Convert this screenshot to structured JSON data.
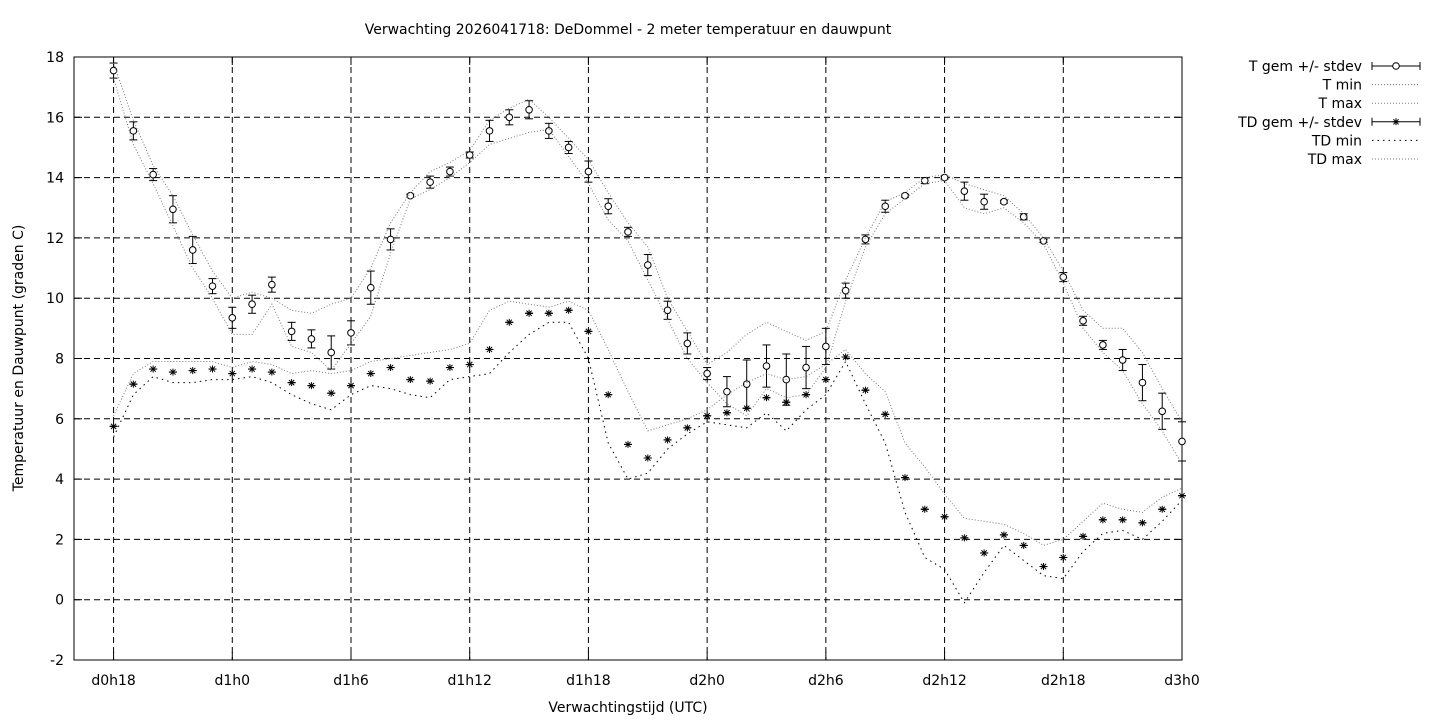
{
  "chart_data": {
    "type": "line",
    "title": "Verwachting 2026041718: DeDommel - 2 meter temperatuur en dauwpunt",
    "xlabel": "Verwachtingstijd (UTC)",
    "ylabel": "Temperatuur en Dauwpunt (graden C)",
    "x_unit": "forecast hour",
    "xlim": [
      -2,
      54
    ],
    "ylim": [
      -2,
      18
    ],
    "y_ticks": [
      -2,
      0,
      2,
      4,
      6,
      8,
      10,
      12,
      14,
      16,
      18
    ],
    "x_ticks": [
      {
        "x": 0,
        "label": "d0h18"
      },
      {
        "x": 6,
        "label": "d1h0"
      },
      {
        "x": 12,
        "label": "d1h6"
      },
      {
        "x": 18,
        "label": "d1h12"
      },
      {
        "x": 24,
        "label": "d1h18"
      },
      {
        "x": 30,
        "label": "d2h0"
      },
      {
        "x": 36,
        "label": "d2h6"
      },
      {
        "x": 42,
        "label": "d2h12"
      },
      {
        "x": 48,
        "label": "d2h18"
      },
      {
        "x": 54,
        "label": "d3h0"
      }
    ],
    "grid": true,
    "legend_position": "outside-right-top",
    "x": [
      0,
      1,
      2,
      3,
      4,
      5,
      6,
      7,
      8,
      9,
      10,
      11,
      12,
      13,
      14,
      15,
      16,
      17,
      18,
      19,
      20,
      21,
      22,
      23,
      24,
      25,
      26,
      27,
      28,
      29,
      30,
      31,
      32,
      33,
      34,
      35,
      36,
      37,
      38,
      39,
      40,
      41,
      42,
      43,
      44,
      45,
      46,
      47,
      48,
      49,
      50,
      51,
      52,
      53,
      54
    ],
    "series": [
      {
        "name": "T gem +/- stdev",
        "marker": "circle",
        "style": "errorbars",
        "values": [
          17.55,
          15.55,
          14.1,
          12.95,
          11.6,
          10.4,
          9.35,
          9.8,
          10.45,
          8.9,
          8.65,
          8.2,
          8.85,
          10.35,
          11.95,
          13.4,
          13.85,
          14.2,
          14.75,
          15.55,
          16.0,
          16.25,
          15.55,
          15.0,
          14.2,
          13.05,
          12.2,
          11.1,
          9.6,
          8.5,
          7.5,
          6.9,
          7.15,
          7.75,
          7.3,
          7.7,
          8.4,
          10.25,
          11.95,
          13.05,
          13.4,
          13.9,
          14.0,
          13.55,
          13.2,
          13.2,
          12.7,
          11.9,
          10.7,
          9.25,
          8.45,
          7.95,
          7.2,
          6.25,
          5.25
        ],
        "stdev": [
          0.25,
          0.3,
          0.2,
          0.45,
          0.45,
          0.25,
          0.35,
          0.3,
          0.25,
          0.3,
          0.3,
          0.55,
          0.4,
          0.55,
          0.35,
          0.05,
          0.2,
          0.15,
          0.1,
          0.35,
          0.25,
          0.3,
          0.25,
          0.2,
          0.35,
          0.25,
          0.15,
          0.35,
          0.3,
          0.35,
          0.2,
          0.5,
          0.8,
          0.7,
          0.85,
          0.7,
          0.6,
          0.25,
          0.15,
          0.2,
          0.05,
          0.1,
          0.05,
          0.3,
          0.25,
          0.05,
          0.1,
          0.05,
          0.15,
          0.15,
          0.15,
          0.35,
          0.6,
          0.6,
          0.65
        ]
      },
      {
        "name": "T min",
        "style": "dotted",
        "values": [
          17.3,
          15.1,
          13.8,
          12.4,
          11.0,
          10.0,
          8.8,
          8.8,
          9.8,
          8.4,
          8.2,
          7.6,
          8.5,
          9.4,
          11.5,
          13.3,
          13.6,
          14.0,
          14.5,
          15.1,
          15.3,
          15.5,
          15.6,
          14.7,
          13.8,
          12.6,
          11.9,
          10.6,
          9.3,
          8.0,
          7.2,
          6.5,
          6.1,
          7.0,
          6.7,
          6.8,
          7.7,
          9.9,
          11.7,
          12.8,
          13.3,
          13.8,
          13.9,
          13.0,
          12.8,
          13.0,
          12.5,
          11.8,
          10.5,
          9.0,
          8.2,
          7.6,
          6.5,
          5.6,
          4.5
        ]
      },
      {
        "name": "T max",
        "style": "dotted",
        "values": [
          17.8,
          15.9,
          14.4,
          13.4,
          12.1,
          10.9,
          10.0,
          10.2,
          10.0,
          9.6,
          9.5,
          9.8,
          10.0,
          11.0,
          12.5,
          13.5,
          14.2,
          14.5,
          14.9,
          15.9,
          16.3,
          16.6,
          16.0,
          15.3,
          14.6,
          13.5,
          12.5,
          11.7,
          10.0,
          8.9,
          7.8,
          8.2,
          8.8,
          9.2,
          8.9,
          8.6,
          8.9,
          10.6,
          12.0,
          13.2,
          13.5,
          14.0,
          14.1,
          13.8,
          13.6,
          13.4,
          12.8,
          12.0,
          10.9,
          9.6,
          9.0,
          9.0,
          8.2,
          7.0,
          5.9
        ]
      },
      {
        "name": "TD gem +/- stdev",
        "marker": "asterisk",
        "style": "errorbars",
        "values": [
          5.75,
          7.15,
          7.65,
          7.55,
          7.6,
          7.65,
          7.5,
          7.65,
          7.55,
          7.2,
          7.1,
          6.85,
          7.1,
          7.5,
          7.7,
          7.3,
          7.25,
          7.7,
          7.8,
          8.3,
          9.2,
          9.5,
          9.5,
          9.6,
          8.9,
          6.8,
          5.15,
          4.7,
          5.3,
          5.7,
          6.1,
          6.2,
          6.35,
          6.7,
          6.55,
          6.8,
          7.3,
          8.05,
          6.95,
          6.15,
          4.05,
          3.0,
          2.75,
          2.05,
          1.55,
          2.15,
          1.8,
          1.1,
          1.4,
          2.1,
          2.65,
          2.65,
          2.55,
          3.0,
          3.45
        ]
      },
      {
        "name": "TD min",
        "style": "dots",
        "values": [
          5.4,
          6.8,
          7.4,
          7.2,
          7.2,
          7.3,
          7.3,
          7.4,
          7.2,
          6.8,
          6.5,
          6.3,
          6.8,
          7.1,
          7.0,
          6.8,
          6.7,
          7.3,
          7.4,
          7.5,
          8.2,
          8.8,
          9.2,
          9.2,
          8.0,
          5.2,
          4.0,
          4.2,
          5.0,
          5.5,
          5.9,
          5.8,
          5.7,
          6.2,
          5.6,
          6.3,
          6.8,
          7.9,
          6.5,
          5.2,
          2.9,
          1.4,
          1.0,
          -0.1,
          0.9,
          1.8,
          1.3,
          0.8,
          0.7,
          1.6,
          2.2,
          2.3,
          2.0,
          2.6,
          3.3
        ]
      },
      {
        "name": "TD max",
        "style": "dotted",
        "values": [
          6.1,
          7.5,
          7.9,
          7.9,
          7.9,
          7.9,
          7.7,
          7.9,
          7.8,
          7.5,
          7.6,
          7.5,
          7.6,
          7.9,
          8.0,
          8.1,
          8.2,
          8.3,
          8.5,
          9.6,
          9.9,
          9.8,
          9.7,
          9.9,
          9.6,
          8.3,
          6.9,
          5.6,
          5.8,
          6.0,
          6.3,
          6.8,
          7.2,
          7.5,
          7.3,
          7.4,
          7.8,
          8.3,
          7.5,
          6.9,
          5.2,
          4.4,
          3.5,
          2.7,
          2.6,
          2.5,
          2.2,
          1.8,
          2.0,
          2.6,
          3.2,
          3.0,
          2.9,
          3.4,
          3.7
        ]
      }
    ]
  }
}
